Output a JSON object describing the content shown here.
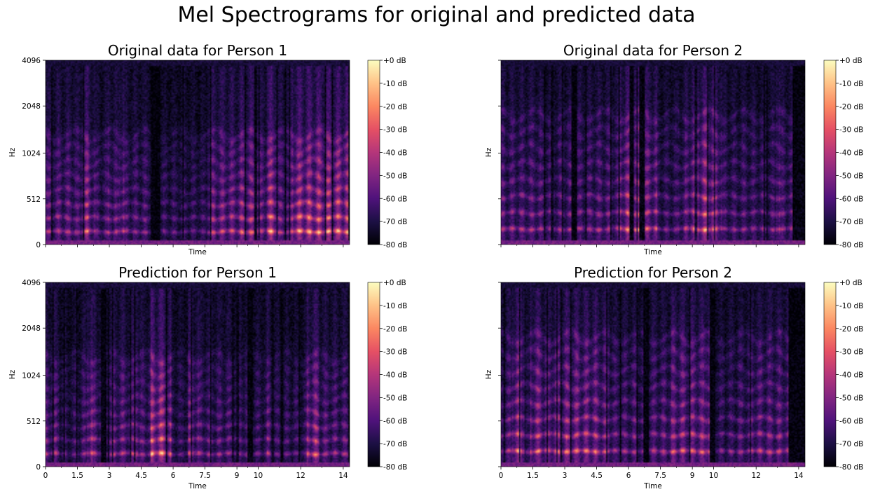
{
  "figure": {
    "title": "Mel Spectrograms for original and predicted data"
  },
  "colors": {
    "colormap": "magma",
    "magma_stops": [
      "#000004",
      "#1c1044",
      "#4f127b",
      "#812581",
      "#b5367a",
      "#e55064",
      "#fb8761",
      "#fec287",
      "#fcfdbf"
    ]
  },
  "chart_data": [
    {
      "type": "heatmap",
      "title": "Original data for Person 1",
      "xlabel": "Time",
      "ylabel": "Hz",
      "y_ticks": [
        "0",
        "512",
        "1024",
        "2048",
        "4096"
      ],
      "x_ticks": [],
      "x_range_s": [
        0,
        14.3
      ],
      "y_scale": "mel",
      "colorbar": {
        "ticks": [
          "+0 dB",
          "-10 dB",
          "-20 dB",
          "-30 dB",
          "-40 dB",
          "-50 dB",
          "-60 dB",
          "-70 dB",
          "-80 dB"
        ],
        "range_db": [
          -80,
          0
        ]
      },
      "gaps_s": [
        5.1,
        5.25
      ],
      "silence_end_s": 14.2
    },
    {
      "type": "heatmap",
      "title": "Original data for Person 2",
      "xlabel": "Time",
      "ylabel": "Hz",
      "y_ticks": [],
      "x_ticks": [],
      "x_range_s": [
        0,
        14.3
      ],
      "y_scale": "mel",
      "colorbar": {
        "ticks": [
          "+0 dB",
          "-10 dB",
          "-20 dB",
          "-30 dB",
          "-40 dB",
          "-50 dB",
          "-60 dB",
          "-70 dB",
          "-80 dB"
        ],
        "range_db": [
          -80,
          0
        ]
      },
      "gaps_s": [
        3.4,
        6.1,
        6.6
      ],
      "silence_end_s": 13.7
    },
    {
      "type": "heatmap",
      "title": "Prediction for Person 1",
      "xlabel": "Time",
      "ylabel": "Hz",
      "y_ticks": [
        "0",
        "512",
        "1024",
        "2048",
        "4096"
      ],
      "x_ticks": [
        "0",
        "1.5",
        "3",
        "4.5",
        "6",
        "7.5",
        "9",
        "10",
        "12",
        "14"
      ],
      "x_range_s": [
        0,
        14.3
      ],
      "y_scale": "mel",
      "colorbar": {
        "ticks": [
          "+0 dB",
          "-10 dB",
          "-20 dB",
          "-30 dB",
          "-40 dB",
          "-50 dB",
          "-60 dB",
          "-70 dB",
          "-80 dB"
        ],
        "range_db": [
          -80,
          0
        ]
      },
      "gaps_s": [
        2.7,
        9.6
      ],
      "silence_end_s": 14.2
    },
    {
      "type": "heatmap",
      "title": "Prediction for Person 2",
      "xlabel": "Time",
      "ylabel": "Hz",
      "y_ticks": [],
      "x_ticks": [
        "0",
        "1.5",
        "3",
        "4.5",
        "6",
        "7.5",
        "9",
        "10",
        "12",
        "14"
      ],
      "x_range_s": [
        0,
        14.3
      ],
      "y_scale": "mel",
      "colorbar": {
        "ticks": [
          "+0 dB",
          "-10 dB",
          "-20 dB",
          "-30 dB",
          "-40 dB",
          "-50 dB",
          "-60 dB",
          "-70 dB",
          "-80 dB"
        ],
        "range_db": [
          -80,
          0
        ]
      },
      "gaps_s": [
        6.8,
        9.9
      ],
      "silence_end_s": 13.5
    }
  ]
}
